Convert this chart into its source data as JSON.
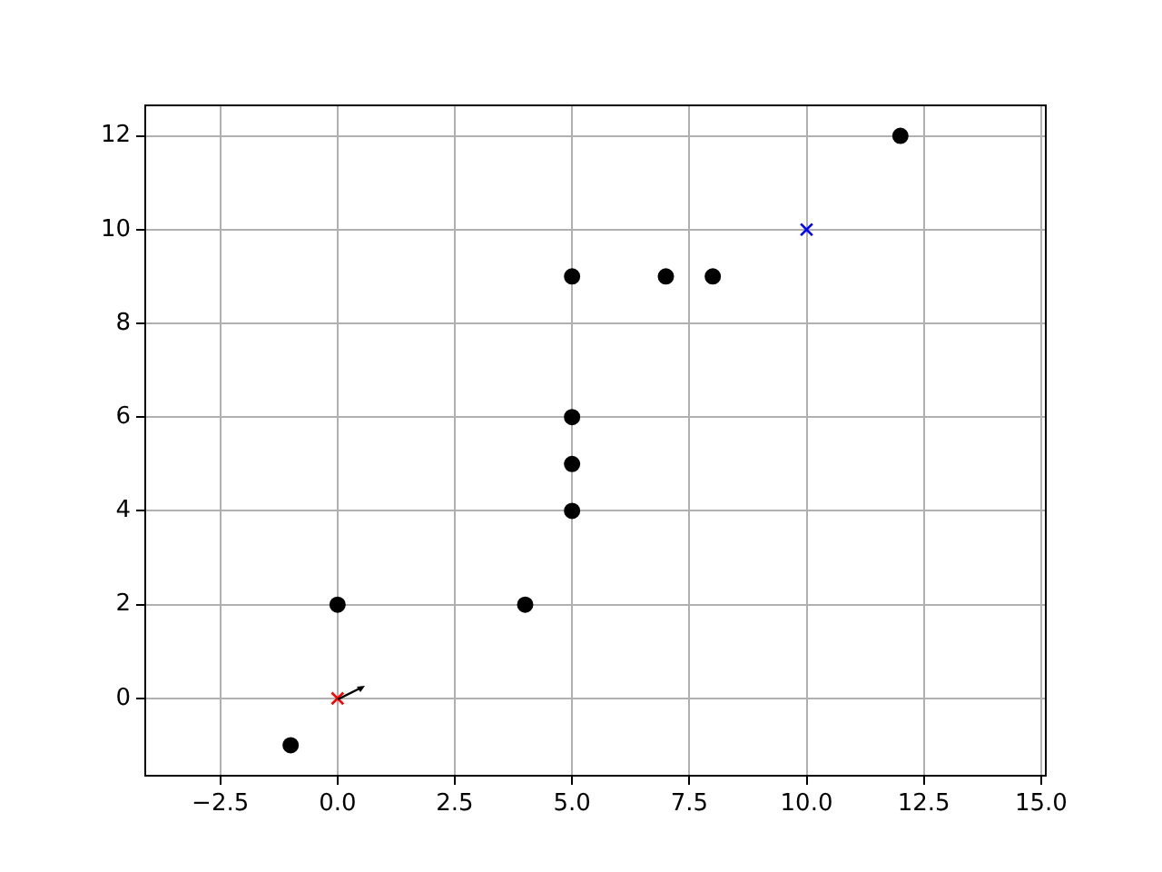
{
  "chart_data": {
    "type": "scatter",
    "xlim": [
      -4.1,
      15.1
    ],
    "ylim": [
      -1.65,
      12.65
    ],
    "xticks": [
      {
        "value": -2.5,
        "label": "−2.5"
      },
      {
        "value": 0,
        "label": "0.0"
      },
      {
        "value": 2.5,
        "label": "2.5"
      },
      {
        "value": 5,
        "label": "5.0"
      },
      {
        "value": 7.5,
        "label": "7.5"
      },
      {
        "value": 10,
        "label": "10.0"
      },
      {
        "value": 12.5,
        "label": "12.5"
      },
      {
        "value": 15,
        "label": "15.0"
      }
    ],
    "yticks": [
      0,
      2,
      4,
      6,
      8,
      10,
      12
    ],
    "grid": true,
    "legend": false,
    "series": [
      {
        "color": "#000000",
        "marker": "circle",
        "x": [
          -1,
          0,
          4,
          5,
          5,
          5,
          5,
          7,
          8,
          12
        ],
        "values": [
          -1,
          2,
          2,
          4,
          5,
          6,
          9,
          9,
          9,
          12
        ]
      },
      {
        "color": "#ff0000",
        "marker": "cross",
        "x": [
          0
        ],
        "values": [
          0
        ]
      },
      {
        "color": "#0000ff",
        "marker": "cross",
        "x": [
          10
        ],
        "values": [
          10
        ]
      }
    ]
  }
}
